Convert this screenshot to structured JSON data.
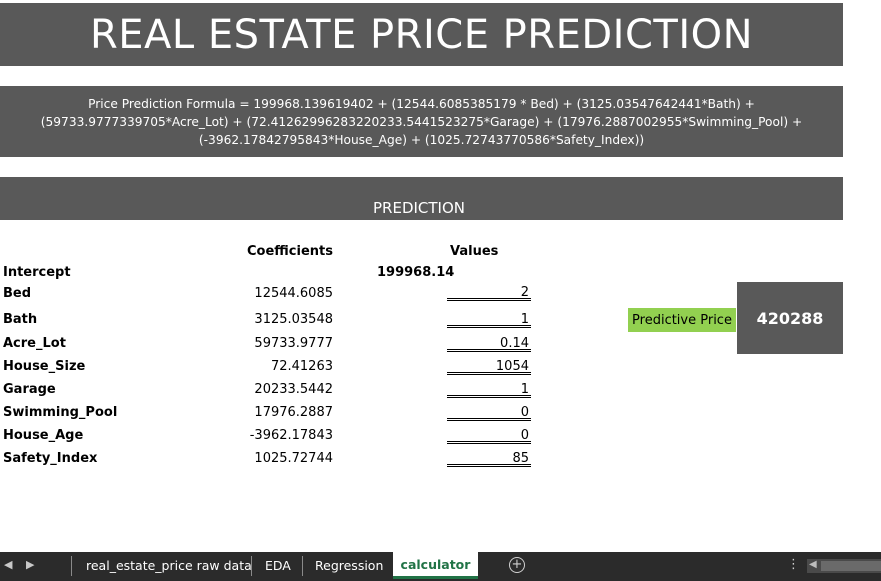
{
  "sheet": {
    "title": "REAL ESTATE PRICE PREDICTION",
    "formula": "Price Prediction Formula = 199968.139619402 + (12544.6085385179 * Bed) + (3125.03547642441*Bath) + (59733.9777339705*Acre_Lot) + (72.41262996283220233.5441523275*Garage) + (17976.2887002955*Swimming_Pool) + (-3962.17842795843*House_Age) + (1025.72743770586*Safety_Index))",
    "section_title": "PREDICTION",
    "headers": {
      "coefficients": "Coefficients",
      "values": "Values"
    },
    "intercept": {
      "label": "Intercept",
      "value": "199968.14"
    },
    "rows": [
      {
        "label": "Bed",
        "coef": "12544.6085",
        "value": "2"
      },
      {
        "label": "Bath",
        "coef": "3125.03548",
        "value": "1"
      },
      {
        "label": "Acre_Lot",
        "coef": "59733.9777",
        "value": "0.14"
      },
      {
        "label": "House_Size",
        "coef": "72.41263",
        "value": "1054"
      },
      {
        "label": "Garage",
        "coef": "20233.5442",
        "value": "1"
      },
      {
        "label": "Swimming_Pool",
        "coef": "17976.2887",
        "value": "0"
      },
      {
        "label": "House_Age",
        "coef": "-3962.17843",
        "value": "0"
      },
      {
        "label": "Safety_Index",
        "coef": "1025.72744",
        "value": "85"
      }
    ],
    "predictive_price": {
      "label": "Predictive Price",
      "value": "420288"
    }
  },
  "tabs": {
    "items": [
      {
        "label": "real_estate_price raw data"
      },
      {
        "label": "EDA"
      },
      {
        "label": "Regression"
      },
      {
        "label": "calculator",
        "active": true
      }
    ],
    "add_icon": "plus-circle-icon",
    "prev_icon": "chevron-left-icon",
    "next_icon": "chevron-right-icon",
    "more_icon": "vertical-dots-icon"
  },
  "colors": {
    "banner_gray": "#595959",
    "accent_green": "#92d050",
    "active_tab_green": "#217346"
  }
}
